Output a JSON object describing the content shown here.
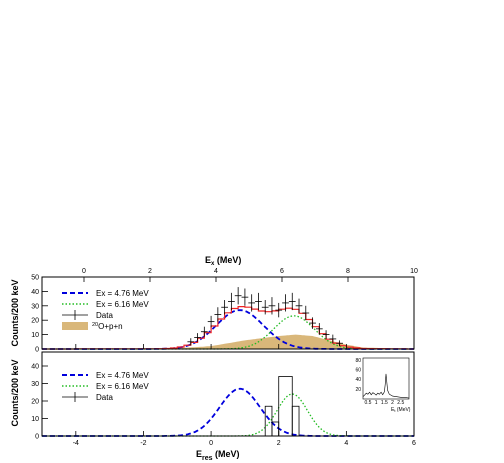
{
  "chart_data": [
    {
      "type": "line",
      "id": "top",
      "top_axis_label_main": "E",
      "top_axis_label_sub": "x",
      "top_axis_unit": "(MeV)",
      "top_axis_ticks": [
        "0",
        "2",
        "4",
        "6",
        "8",
        "10"
      ],
      "ylabel": "Counts/200 keV",
      "xlim": [
        -5,
        6
      ],
      "ylim": [
        0,
        50
      ],
      "x_ticks": [
        -4,
        -2,
        0,
        2,
        4,
        6
      ],
      "y_ticks": [
        0,
        10,
        20,
        30,
        40,
        50
      ],
      "legend": [
        {
          "label": "Ex = 4.76 MeV",
          "style": "dashed",
          "color": "#0000dd"
        },
        {
          "label": "Ex = 6.16 MeV",
          "style": "dotted",
          "color": "#22bb22"
        },
        {
          "label": "Data",
          "style": "errorbar",
          "color": "#000000"
        },
        {
          "label_sup": "20",
          "label": "O+p+n",
          "style": "fill",
          "color": "#d9b77a"
        }
      ],
      "series": [
        {
          "kind": "gaussian",
          "color": "#0000dd",
          "mean": 0.85,
          "sigma": 0.7,
          "amp": 27
        },
        {
          "kind": "gaussian",
          "color": "#22bb22",
          "mean": 2.45,
          "sigma": 0.6,
          "amp": 23
        },
        {
          "kind": "background",
          "color": "#d9b77a",
          "x": [
            -5,
            -1,
            0,
            1,
            2,
            2.5,
            3,
            3.5,
            4,
            4.5,
            6
          ],
          "y": [
            0,
            0.5,
            2,
            6,
            9,
            10,
            9,
            6,
            3,
            1,
            0
          ]
        }
      ],
      "data_points": {
        "x": [
          -0.6,
          -0.4,
          -0.2,
          0.0,
          0.2,
          0.4,
          0.6,
          0.8,
          1.0,
          1.2,
          1.4,
          1.6,
          1.8,
          2.0,
          2.2,
          2.4,
          2.6,
          2.8,
          3.0,
          3.2,
          3.4,
          3.6,
          3.8
        ],
        "y": [
          5,
          8,
          12,
          19,
          24,
          29,
          33,
          37,
          36,
          32,
          33,
          29,
          30,
          27,
          32,
          33,
          30,
          25,
          18,
          14,
          10,
          7,
          4
        ],
        "err": [
          2.5,
          3,
          3.5,
          4,
          5,
          5,
          6,
          6,
          6,
          6,
          6,
          5,
          6,
          5,
          6,
          6,
          5,
          5,
          4,
          4,
          3,
          3,
          2
        ]
      },
      "total_fit_color": "#ee2222"
    },
    {
      "type": "bar",
      "id": "bottom",
      "xlabel_main": "E",
      "xlabel_sub": "res",
      "xlabel_unit": "(MeV)",
      "ylabel": "Counts/200 keV",
      "xlim": [
        -5,
        6
      ],
      "ylim": [
        0,
        48
      ],
      "x_ticks": [
        "-4",
        "-2",
        "0",
        "2",
        "4",
        "6"
      ],
      "x_tick_values": [
        -4,
        -2,
        0,
        2,
        4,
        6
      ],
      "y_ticks": [
        0,
        10,
        20,
        30,
        40
      ],
      "legend": [
        {
          "label": "Ex = 4.76 MeV",
          "style": "dashed",
          "color": "#0000dd"
        },
        {
          "label": "Ex = 6.16 MeV",
          "style": "dotted",
          "color": "#22bb22"
        },
        {
          "label": "Data",
          "style": "errorbar",
          "color": "#000000"
        }
      ],
      "series": [
        {
          "kind": "gaussian",
          "color": "#0000dd",
          "mean": 0.85,
          "sigma": 0.6,
          "amp": 27
        },
        {
          "kind": "gaussian",
          "color": "#22bb22",
          "mean": 2.4,
          "sigma": 0.45,
          "amp": 24
        }
      ],
      "histogram": {
        "edges": [
          1.6,
          1.8,
          2.0,
          2.4,
          2.6
        ],
        "values": [
          17,
          8,
          34,
          17
        ]
      },
      "inset": {
        "xlim": [
          0.2,
          3.0
        ],
        "ylim": [
          0,
          85
        ],
        "x_ticks": [
          "0.5",
          "1",
          "1.5",
          "2",
          "2.5"
        ],
        "x_tick_values": [
          0.5,
          1,
          1.5,
          2,
          2.5
        ],
        "y_ticks": [
          "20",
          "40",
          "60",
          "80"
        ],
        "y_tick_values": [
          20,
          40,
          60,
          80
        ],
        "xlabel_main": "E",
        "xlabel_sub": "t",
        "xlabel_unit": "(MeV)",
        "x": [
          0.2,
          0.3,
          0.4,
          0.5,
          0.6,
          0.7,
          0.8,
          0.9,
          1.0,
          1.1,
          1.2,
          1.3,
          1.4,
          1.5,
          1.55,
          1.6,
          1.65,
          1.7,
          1.8,
          1.9,
          2.0,
          2.2,
          2.4,
          2.6,
          2.8,
          3.0
        ],
        "y": [
          5,
          8,
          12,
          10,
          14,
          9,
          13,
          11,
          8,
          12,
          10,
          14,
          9,
          15,
          30,
          52,
          35,
          18,
          10,
          8,
          6,
          5,
          4,
          3,
          3,
          2
        ]
      }
    }
  ]
}
